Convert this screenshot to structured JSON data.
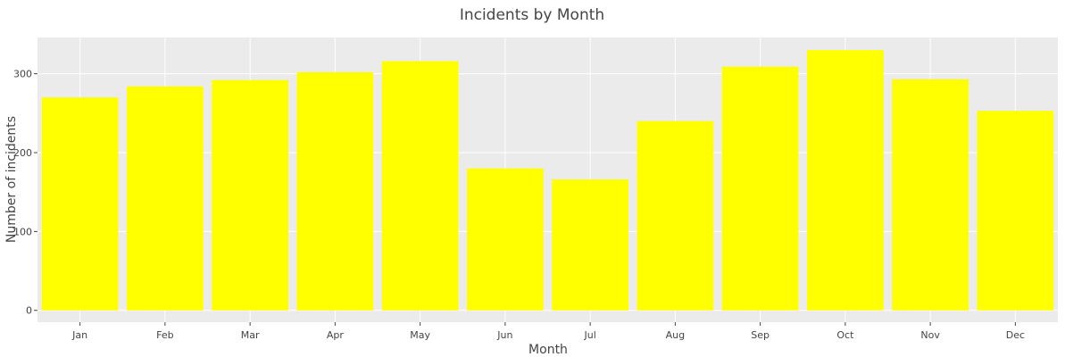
{
  "chart_data": {
    "type": "bar",
    "title": "Incidents by Month",
    "xlabel": "Month",
    "ylabel": "Number of incidents",
    "categories": [
      "Jan",
      "Feb",
      "Mar",
      "Apr",
      "May",
      "Jun",
      "Jul",
      "Aug",
      "Sep",
      "Oct",
      "Nov",
      "Dec"
    ],
    "values": [
      270,
      284,
      292,
      302,
      316,
      180,
      166,
      240,
      309,
      330,
      293,
      253
    ],
    "ylim": [
      -15,
      346
    ],
    "yticks": [
      0,
      100,
      200,
      300
    ],
    "grid": true,
    "colors": {
      "bar": "#ffff00",
      "plot_background": "#ebebeb",
      "gridline": "#ffffff"
    }
  }
}
